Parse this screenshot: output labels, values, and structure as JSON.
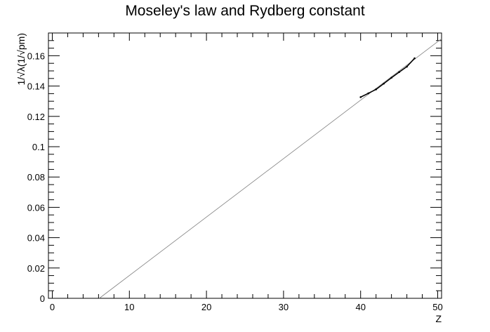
{
  "chart_data": {
    "type": "scatter",
    "title": "Moseley's law and Rydberg constant",
    "xlabel": "Z",
    "ylabel": "1/√λ(1/√pm)",
    "xlim": [
      -0.5,
      50.5
    ],
    "ylim": [
      0,
      0.175
    ],
    "x_ticks": [
      0,
      10,
      20,
      30,
      40,
      50
    ],
    "y_ticks": [
      0,
      0.02,
      0.04,
      0.06,
      0.08,
      0.1,
      0.12,
      0.14,
      0.16
    ],
    "x_tick_labels": [
      "0",
      "10",
      "20",
      "30",
      "40",
      "50"
    ],
    "y_tick_labels": [
      "0",
      "0.02",
      "0.04",
      "0.06",
      "0.08",
      "0.1",
      "0.12",
      "0.14",
      "0.16"
    ],
    "grid": false,
    "series": [
      {
        "kind": "points",
        "x": [
          40,
          41,
          42,
          43,
          44,
          45,
          46,
          47
        ],
        "y": [
          0.1327,
          0.1352,
          0.1378,
          0.1416,
          0.1455,
          0.1492,
          0.1528,
          0.1583
        ],
        "color": "#000000"
      },
      {
        "kind": "fit-line",
        "x": [
          6.1,
          50.5
        ],
        "y": [
          0,
          0.1712
        ],
        "color": "#808080"
      }
    ]
  }
}
